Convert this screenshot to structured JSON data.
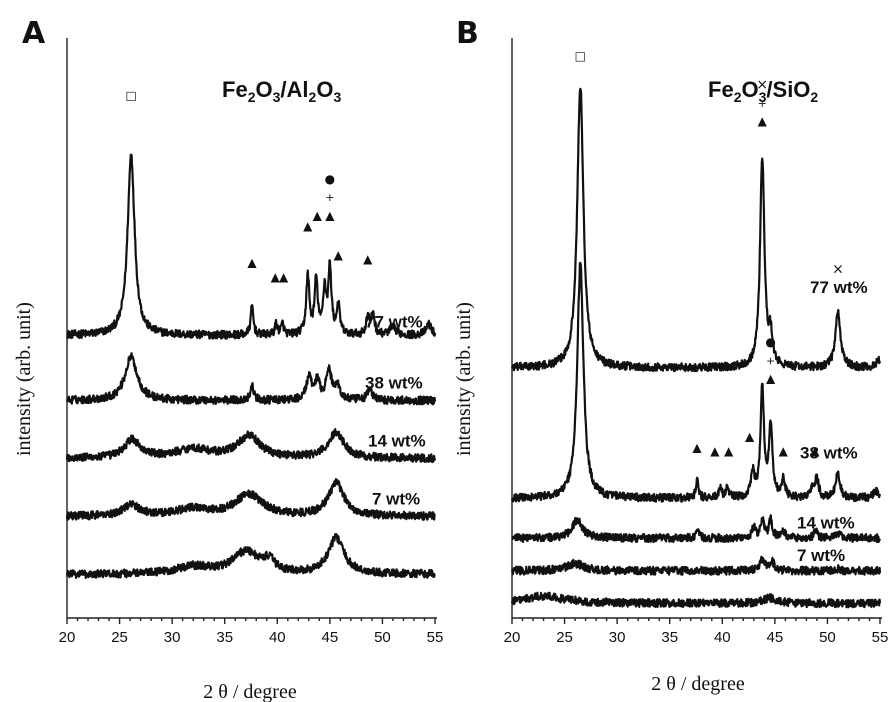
{
  "chart_data": [
    {
      "panel": "A",
      "type": "line",
      "title": "Fe2O3/Al2O3",
      "title_parts": {
        "a": "Fe",
        "b": "2",
        "c": "O",
        "d": "3",
        "e": "/Al",
        "f": "2",
        "g": "O",
        "h": "3"
      },
      "xlabel": "2 θ / degree",
      "ylabel": "intensity (arb. unit)",
      "xlim": [
        20,
        55
      ],
      "xticks": [
        "20",
        "25",
        "30",
        "35",
        "40",
        "45",
        "50",
        "55"
      ],
      "series": [
        {
          "name": "77 wt%",
          "offset": 0.78,
          "peaks": [
            [
              26.1,
              0.5,
              0.4
            ],
            [
              37.6,
              0.08,
              0.15
            ],
            [
              39.9,
              0.03,
              0.15
            ],
            [
              40.5,
              0.03,
              0.15
            ],
            [
              42.9,
              0.16,
              0.18
            ],
            [
              43.7,
              0.15,
              0.18
            ],
            [
              44.5,
              0.12,
              0.18
            ],
            [
              45.0,
              0.18,
              0.18
            ],
            [
              45.8,
              0.08,
              0.18
            ],
            [
              48.6,
              0.05,
              0.18
            ],
            [
              49.1,
              0.06,
              0.18
            ],
            [
              51.0,
              0.02,
              0.4
            ],
            [
              54.4,
              0.03,
              0.3
            ]
          ]
        },
        {
          "name": "38 wt%",
          "offset": 0.6,
          "peaks": [
            [
              26.1,
              0.12,
              0.7
            ],
            [
              37.6,
              0.04,
              0.2
            ],
            [
              43.0,
              0.06,
              0.3
            ],
            [
              43.8,
              0.05,
              0.3
            ],
            [
              44.9,
              0.08,
              0.3
            ],
            [
              45.7,
              0.04,
              0.3
            ],
            [
              48.8,
              0.03,
              0.3
            ]
          ]
        },
        {
          "name": "14 wt%",
          "offset": 0.44,
          "peaks": [
            [
              26.2,
              0.05,
              0.9
            ],
            [
              32.0,
              0.025,
              2.0
            ],
            [
              37.3,
              0.06,
              1.3
            ],
            [
              45.6,
              0.07,
              0.9
            ]
          ]
        },
        {
          "name": "7 wt%",
          "offset": 0.28,
          "peaks": [
            [
              26.1,
              0.03,
              1.0
            ],
            [
              32.0,
              0.02,
              2.0
            ],
            [
              37.3,
              0.06,
              1.5
            ],
            [
              45.6,
              0.09,
              0.9
            ]
          ]
        },
        {
          "name": "",
          "offset": 0.12,
          "peaks": [
            [
              32.0,
              0.02,
              2.0
            ],
            [
              37.0,
              0.06,
              1.5
            ],
            [
              39.2,
              0.03,
              0.7
            ],
            [
              45.6,
              0.1,
              0.9
            ]
          ]
        }
      ],
      "markers": [
        {
          "symbol": "□",
          "x": 26.1,
          "y": 1.43
        },
        {
          "symbol": "▲",
          "x": 37.6,
          "y": 0.97
        },
        {
          "symbol": "▲",
          "x": 39.8,
          "y": 0.93
        },
        {
          "symbol": "▲",
          "x": 40.6,
          "y": 0.93
        },
        {
          "symbol": "▲",
          "x": 42.9,
          "y": 1.07
        },
        {
          "symbol": "▲",
          "x": 43.8,
          "y": 1.1
        },
        {
          "symbol": "▲",
          "x": 45.0,
          "y": 1.1
        },
        {
          "symbol": "+",
          "x": 45.0,
          "y": 1.15
        },
        {
          "symbol": "●",
          "x": 45.0,
          "y": 1.2
        },
        {
          "symbol": "▲",
          "x": 45.8,
          "y": 0.99
        },
        {
          "symbol": "▲",
          "x": 48.6,
          "y": 0.98
        }
      ]
    },
    {
      "panel": "B",
      "type": "line",
      "title": "Fe2O3/SiO2",
      "title_parts": {
        "a": "Fe",
        "b": "2",
        "c": "O",
        "d": "3",
        "e": "/SiO",
        "f": "2"
      },
      "xlabel": "2 θ / degree",
      "ylabel": "intensity (arb. unit)",
      "xlim": [
        20,
        55
      ],
      "xticks": [
        "20",
        "25",
        "30",
        "35",
        "40",
        "45",
        "50",
        "55"
      ],
      "series": [
        {
          "name": "77 wt%",
          "offset": 0.69,
          "peaks": [
            [
              26.5,
              0.78,
              0.35
            ],
            [
              43.8,
              0.58,
              0.25
            ],
            [
              44.6,
              0.08,
              0.2
            ],
            [
              51.0,
              0.15,
              0.3
            ],
            [
              54.9,
              0.02,
              0.3
            ]
          ]
        },
        {
          "name": "38 wt%",
          "offset": 0.33,
          "peaks": [
            [
              26.5,
              0.65,
              0.35
            ],
            [
              37.6,
              0.05,
              0.15
            ],
            [
              39.8,
              0.03,
              0.15
            ],
            [
              40.5,
              0.03,
              0.15
            ],
            [
              42.9,
              0.07,
              0.2
            ],
            [
              43.8,
              0.3,
              0.2
            ],
            [
              44.6,
              0.2,
              0.2
            ],
            [
              45.8,
              0.05,
              0.2
            ],
            [
              48.6,
              0.03,
              0.2
            ],
            [
              49.0,
              0.05,
              0.2
            ],
            [
              51.0,
              0.07,
              0.25
            ],
            [
              54.6,
              0.02,
              0.3
            ]
          ]
        },
        {
          "name": "14 wt%",
          "offset": 0.22,
          "peaks": [
            [
              26.2,
              0.05,
              0.6
            ],
            [
              37.6,
              0.02,
              0.2
            ],
            [
              43.0,
              0.03,
              0.2
            ],
            [
              43.8,
              0.05,
              0.2
            ],
            [
              44.6,
              0.05,
              0.2
            ],
            [
              45.8,
              0.02,
              0.2
            ],
            [
              48.9,
              0.02,
              0.2
            ],
            [
              51.0,
              0.01,
              0.3
            ]
          ]
        },
        {
          "name": "7 wt%",
          "offset": 0.13,
          "peaks": [
            [
              26.0,
              0.02,
              1.0
            ],
            [
              37.6,
              0.005,
              0.2
            ],
            [
              43.8,
              0.03,
              0.3
            ],
            [
              44.7,
              0.025,
              0.3
            ],
            [
              51.0,
              0.005,
              0.3
            ]
          ]
        },
        {
          "name": "",
          "offset": 0.04,
          "peaks": [
            [
              23.0,
              0.02,
              2.5
            ],
            [
              44.5,
              0.015,
              0.8
            ]
          ]
        }
      ],
      "markers": [
        {
          "symbol": "□",
          "x": 26.5,
          "y": 1.54
        },
        {
          "symbol": "▲",
          "x": 43.8,
          "y": 1.36
        },
        {
          "symbol": "+",
          "x": 43.8,
          "y": 1.41
        },
        {
          "symbol": "×",
          "x": 43.8,
          "y": 1.46
        },
        {
          "symbol": "×",
          "x": 51.0,
          "y": 0.95
        },
        {
          "symbol": "▲",
          "x": 37.6,
          "y": 0.46
        },
        {
          "symbol": "▲",
          "x": 39.3,
          "y": 0.45
        },
        {
          "symbol": "▲",
          "x": 40.6,
          "y": 0.45
        },
        {
          "symbol": "▲",
          "x": 42.6,
          "y": 0.49
        },
        {
          "symbol": "▲",
          "x": 44.6,
          "y": 0.65
        },
        {
          "symbol": "+",
          "x": 44.6,
          "y": 0.7
        },
        {
          "symbol": "●",
          "x": 44.6,
          "y": 0.75
        },
        {
          "symbol": "▲",
          "x": 45.8,
          "y": 0.45
        },
        {
          "symbol": "▲",
          "x": 48.8,
          "y": 0.45
        }
      ]
    }
  ]
}
